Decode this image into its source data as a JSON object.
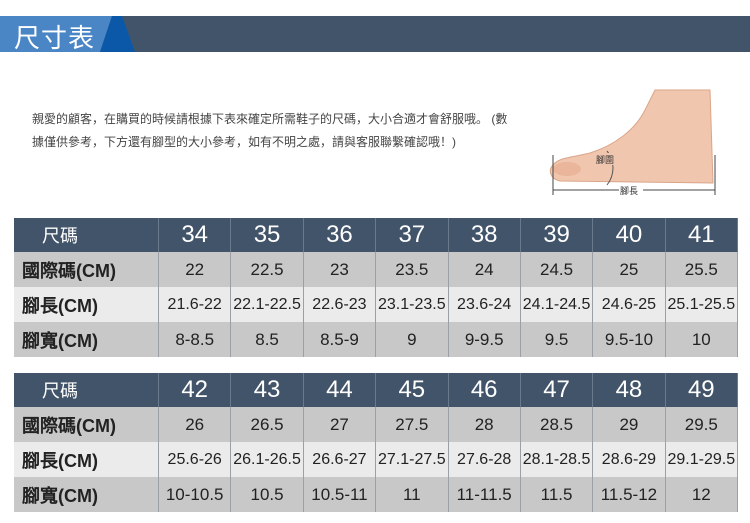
{
  "header": {
    "title": "尺寸表",
    "colors": {
      "accent_light": "#4a86c5",
      "accent_dark": "#0b58a8",
      "bar": "#41546a"
    }
  },
  "intro": {
    "text": "親愛的顧客，在購買的時候請根據下表來確定所需鞋子的尺碼，大小合適才會舒服哦。 (數據僅供參考，下方還有腳型的大小參考，如有不明之處，請與客服聯繫確認哦！)"
  },
  "foot": {
    "girth_label": "腳圍",
    "length_label": "腳長"
  },
  "tables": [
    {
      "rows": [
        {
          "label": "尺碼",
          "cells": [
            "34",
            "35",
            "36",
            "37",
            "38",
            "39",
            "40",
            "41"
          ]
        },
        {
          "label": "國際碼(CM)",
          "cells": [
            "22",
            "22.5",
            "23",
            "23.5",
            "24",
            "24.5",
            "25",
            "25.5"
          ]
        },
        {
          "label": "腳長(CM)",
          "cells": [
            "21.6-22",
            "22.1-22.5",
            "22.6-23",
            "23.1-23.5",
            "23.6-24",
            "24.1-24.5",
            "24.6-25",
            "25.1-25.5"
          ]
        },
        {
          "label": "腳寬(CM)",
          "cells": [
            "8-8.5",
            "8.5",
            "8.5-9",
            "9",
            "9-9.5",
            "9.5",
            "9.5-10",
            "10"
          ]
        }
      ]
    },
    {
      "rows": [
        {
          "label": "尺碼",
          "cells": [
            "42",
            "43",
            "44",
            "45",
            "46",
            "47",
            "48",
            "49"
          ]
        },
        {
          "label": "國際碼(CM)",
          "cells": [
            "26",
            "26.5",
            "27",
            "27.5",
            "28",
            "28.5",
            "29",
            "29.5"
          ]
        },
        {
          "label": "腳長(CM)",
          "cells": [
            "25.6-26",
            "26.1-26.5",
            "26.6-27",
            "27.1-27.5",
            "27.6-28",
            "28.1-28.5",
            "28.6-29",
            "29.1-29.5"
          ]
        },
        {
          "label": "腳寬(CM)",
          "cells": [
            "10-10.5",
            "10.5",
            "10.5-11",
            "11",
            "11-11.5",
            "11.5",
            "11.5-12",
            "12"
          ]
        }
      ]
    }
  ]
}
